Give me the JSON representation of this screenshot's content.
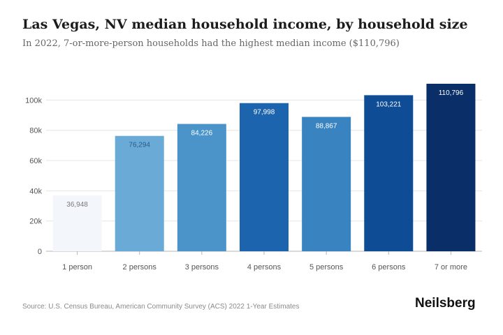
{
  "chart_data": {
    "type": "bar",
    "title": "Las Vegas, NV median household income, by household size",
    "subtitle": "In 2022, 7-or-more-person households had the highest median income ($110,796)",
    "categories": [
      "1 person",
      "2 persons",
      "3 persons",
      "4 persons",
      "5 persons",
      "6 persons",
      "7 or more"
    ],
    "values": [
      36948,
      76294,
      84226,
      97998,
      88867,
      103221,
      110796
    ],
    "value_labels": [
      "36,948",
      "76,294",
      "84,226",
      "97,998",
      "88,867",
      "103,221",
      "110,796"
    ],
    "bar_colors": [
      "#f3f7fc",
      "#6aaad6",
      "#4a94ca",
      "#1c64ad",
      "#3a83c1",
      "#0f4c96",
      "#0a2f68"
    ],
    "label_colors": [
      "#777777",
      "#2e5a86",
      "#ffffff",
      "#ffffff",
      "#ffffff",
      "#ffffff",
      "#ffffff"
    ],
    "yticks": [
      0,
      20000,
      40000,
      60000,
      80000,
      100000
    ],
    "ytick_labels": [
      "0",
      "20k",
      "40k",
      "60k",
      "80k",
      "100k"
    ],
    "ylim": [
      0,
      110796
    ],
    "grid": true,
    "legend": "none"
  },
  "footer": {
    "source": "Source: U.S. Census Bureau, American Community Survey (ACS) 2022 1-Year Estimates",
    "brand": "Neilsberg"
  }
}
